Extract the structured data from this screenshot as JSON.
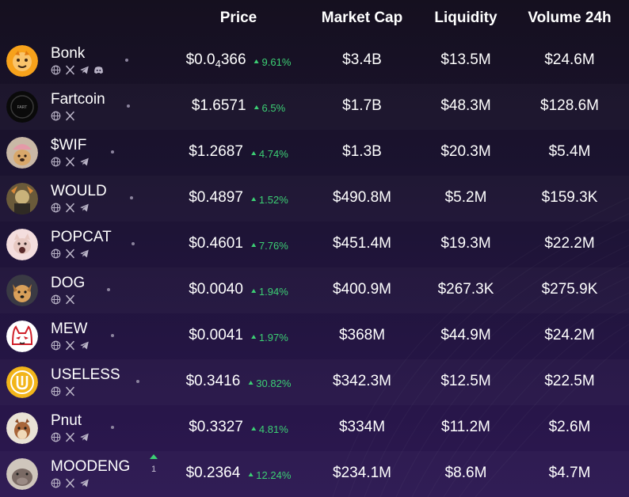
{
  "headers": {
    "price": "Price",
    "market_cap": "Market Cap",
    "liquidity": "Liquidity",
    "volume": "Volume 24h"
  },
  "colors": {
    "positive": "#3ccf74",
    "text": "#ffffff",
    "background": "#1b1330"
  },
  "rows": [
    {
      "name": "Bonk",
      "price": "$0.0",
      "price_sub": "4",
      "price_tail": "366",
      "change": "9.61%",
      "market_cap": "$3.4B",
      "liquidity": "$13.5M",
      "volume": "$24.6M",
      "socials": [
        "globe-icon",
        "x-icon",
        "telegram-icon",
        "discord-icon"
      ],
      "avatar": "bonk-avatar-icon"
    },
    {
      "name": "Fartcoin",
      "price": "$1.6571",
      "change": "6.5%",
      "market_cap": "$1.7B",
      "liquidity": "$48.3M",
      "volume": "$128.6M",
      "socials": [
        "globe-icon",
        "x-icon"
      ],
      "avatar": "fartcoin-avatar-icon"
    },
    {
      "name": "$WIF",
      "price": "$1.2687",
      "change": "4.74%",
      "market_cap": "$1.3B",
      "liquidity": "$20.3M",
      "volume": "$5.4M",
      "socials": [
        "globe-icon",
        "x-icon",
        "telegram-icon"
      ],
      "avatar": "wif-avatar-icon"
    },
    {
      "name": "WOULD",
      "price": "$0.4897",
      "change": "1.52%",
      "market_cap": "$490.8M",
      "liquidity": "$5.2M",
      "volume": "$159.3K",
      "socials": [
        "globe-icon",
        "x-icon",
        "telegram-icon"
      ],
      "avatar": "would-avatar-icon"
    },
    {
      "name": "POPCAT",
      "price": "$0.4601",
      "change": "7.76%",
      "market_cap": "$451.4M",
      "liquidity": "$19.3M",
      "volume": "$22.2M",
      "socials": [
        "globe-icon",
        "x-icon",
        "telegram-icon"
      ],
      "avatar": "popcat-avatar-icon"
    },
    {
      "name": "DOG",
      "price": "$0.0040",
      "change": "1.94%",
      "market_cap": "$400.9M",
      "liquidity": "$267.3K",
      "volume": "$275.9K",
      "socials": [
        "globe-icon",
        "x-icon"
      ],
      "avatar": "dog-avatar-icon"
    },
    {
      "name": "MEW",
      "price": "$0.0041",
      "change": "1.97%",
      "market_cap": "$368M",
      "liquidity": "$44.9M",
      "volume": "$24.2M",
      "socials": [
        "globe-icon",
        "x-icon",
        "telegram-icon"
      ],
      "avatar": "mew-avatar-icon"
    },
    {
      "name": "USELESS",
      "price": "$0.3416",
      "change": "30.82%",
      "market_cap": "$342.3M",
      "liquidity": "$12.5M",
      "volume": "$22.5M",
      "socials": [
        "globe-icon",
        "x-icon"
      ],
      "avatar": "useless-avatar-icon"
    },
    {
      "name": "Pnut",
      "price": "$0.3327",
      "change": "4.81%",
      "market_cap": "$334M",
      "liquidity": "$11.2M",
      "volume": "$2.6M",
      "socials": [
        "globe-icon",
        "x-icon",
        "telegram-icon"
      ],
      "avatar": "pnut-avatar-icon"
    },
    {
      "name": "MOODENG",
      "price": "$0.2364",
      "change": "12.24%",
      "market_cap": "$234.1M",
      "liquidity": "$8.6M",
      "volume": "$4.7M",
      "socials": [
        "globe-icon",
        "x-icon",
        "telegram-icon"
      ],
      "avatar": "moodeng-avatar-icon",
      "rank_change": "1"
    }
  ]
}
